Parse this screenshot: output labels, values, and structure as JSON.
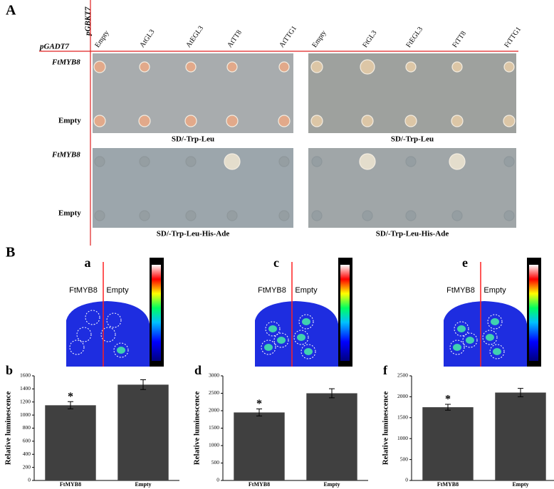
{
  "panel_A": {
    "label": "A",
    "bait_vector": "pGBKT7",
    "prey_vector": "pGADT7",
    "columns_left": [
      "Empty",
      "AtGL3",
      "AtEGL3",
      "AtTT8",
      "AtTTG1"
    ],
    "columns_right": [
      "Empty",
      "FtGL3",
      "FtEGL3",
      "FtTT8",
      "FtTTG1"
    ],
    "rows": [
      "FtMYB8",
      "Empty",
      "FtMYB8",
      "Empty"
    ],
    "plates": [
      "SD/-Trp-Leu",
      "SD/-Trp-Leu",
      "SD/-Trp-Leu-His-Ade",
      "SD/-Trp-Leu-His-Ade"
    ]
  },
  "panel_B": {
    "label": "B",
    "images": [
      {
        "label": "a",
        "left": "FtMYB8",
        "right": "Empty"
      },
      {
        "label": "c",
        "left": "FtMYB8",
        "right": "Empty"
      },
      {
        "label": "e",
        "left": "FtMYB8",
        "right": "Empty"
      }
    ]
  },
  "chart_data": [
    {
      "type": "bar",
      "panel": "b",
      "categories": [
        "FtMYB8",
        "Empty"
      ],
      "values": [
        1150,
        1465
      ],
      "errors": [
        55,
        75
      ],
      "annotations": [
        "*",
        null
      ],
      "y_label": "Relative luminescence",
      "ylim": [
        0,
        1600
      ],
      "yticks": [
        0,
        200,
        400,
        600,
        800,
        1000,
        1200,
        1400,
        1600
      ],
      "color": "#404040"
    },
    {
      "type": "bar",
      "panel": "d",
      "categories": [
        "FtMYB8",
        "Empty"
      ],
      "values": [
        1950,
        2500
      ],
      "errors": [
        100,
        130
      ],
      "annotations": [
        "*",
        null
      ],
      "y_label": "Relative luminescence",
      "ylim": [
        0,
        3000
      ],
      "yticks": [
        0,
        500,
        1000,
        1500,
        2000,
        2500,
        3000
      ],
      "color": "#404040"
    },
    {
      "type": "bar",
      "panel": "f",
      "categories": [
        "FtMYB8",
        "Empty"
      ],
      "values": [
        1750,
        2100
      ],
      "errors": [
        70,
        100
      ],
      "annotations": [
        "*",
        null
      ],
      "y_label": "Relative luminescence",
      "ylim": [
        0,
        2500
      ],
      "yticks": [
        0,
        500,
        1000,
        1500,
        2000,
        2500
      ],
      "color": "#404040"
    }
  ]
}
